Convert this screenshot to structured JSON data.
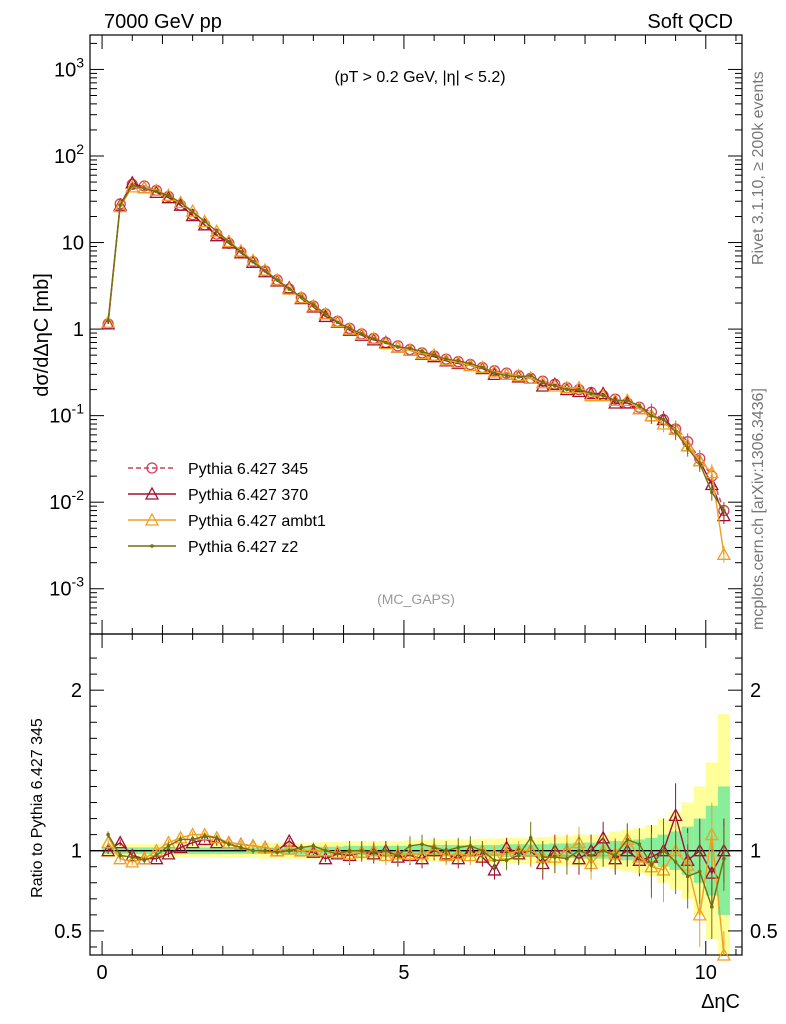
{
  "header": {
    "left": "7000 GeV pp",
    "right": "Soft QCD"
  },
  "side_labels": {
    "rivet": "Rivet 3.1.10, ≥ 200k events",
    "mcplots": "mcplots.cern.ch [arXiv:1306.3436]"
  },
  "watermark": "(MC_GAPS)",
  "chart_data": [
    {
      "type": "line",
      "panel": "main",
      "title": "(pT > 0.2 GeV, |η| < 5.2)",
      "ylabel": "dσ/dΔηC [mb]",
      "yscale": "log",
      "xlim": [
        -0.2,
        10.6
      ],
      "ylim": [
        0.0003,
        2500
      ],
      "y_ticks": [
        "10^3",
        "10^2",
        "10",
        "1",
        "10^-1",
        "10^-2",
        "10^-3"
      ],
      "legend_position": "lower-left",
      "x": [
        0.1,
        0.3,
        0.5,
        0.7,
        0.9,
        1.1,
        1.3,
        1.5,
        1.7,
        1.9,
        2.1,
        2.3,
        2.5,
        2.7,
        2.9,
        3.1,
        3.3,
        3.5,
        3.7,
        3.9,
        4.1,
        4.3,
        4.5,
        4.7,
        4.9,
        5.1,
        5.3,
        5.5,
        5.7,
        5.9,
        6.1,
        6.3,
        6.5,
        6.7,
        6.9,
        7.1,
        7.3,
        7.5,
        7.7,
        7.9,
        8.1,
        8.3,
        8.5,
        8.7,
        8.9,
        9.1,
        9.3,
        9.5,
        9.7,
        9.9,
        10.1,
        10.3
      ],
      "series": [
        {
          "name": "Pythia 6.427 345",
          "color": "#d04060",
          "dashed": true,
          "marker": "circle-open",
          "values": [
            1.15,
            28,
            47,
            45,
            40,
            34,
            27,
            21,
            16,
            12.5,
            9.8,
            7.7,
            6.0,
            4.7,
            3.7,
            2.9,
            2.3,
            1.85,
            1.5,
            1.23,
            1.02,
            0.88,
            0.78,
            0.7,
            0.64,
            0.58,
            0.53,
            0.49,
            0.45,
            0.42,
            0.39,
            0.36,
            0.33,
            0.31,
            0.29,
            0.27,
            0.25,
            0.23,
            0.21,
            0.2,
            0.185,
            0.17,
            0.155,
            0.14,
            0.125,
            0.11,
            0.09,
            0.07,
            0.05,
            0.032,
            0.02,
            0.008
          ]
        },
        {
          "name": "Pythia 6.427 370",
          "color": "#a01030",
          "dashed": false,
          "marker": "triangle-open",
          "values": [
            1.15,
            27,
            49,
            43,
            38,
            33,
            27,
            20.5,
            16,
            12,
            9.9,
            7.6,
            5.9,
            4.6,
            3.6,
            3.0,
            2.25,
            1.8,
            1.4,
            1.2,
            0.97,
            0.85,
            0.75,
            0.7,
            0.62,
            0.57,
            0.51,
            0.48,
            0.43,
            0.4,
            0.38,
            0.35,
            0.3,
            0.3,
            0.28,
            0.27,
            0.22,
            0.23,
            0.2,
            0.19,
            0.18,
            0.18,
            0.14,
            0.14,
            0.12,
            0.1,
            0.09,
            0.07,
            0.045,
            0.03,
            0.016,
            0.007
          ]
        },
        {
          "name": "Pythia 6.427 ambt1",
          "color": "#f0a020",
          "dashed": false,
          "marker": "triangle-open",
          "values": [
            1.2,
            26,
            44,
            43,
            40,
            35,
            29,
            23,
            17.5,
            13.5,
            10.3,
            8.0,
            6.2,
            4.8,
            3.7,
            2.9,
            2.3,
            1.85,
            1.5,
            1.22,
            1.0,
            0.87,
            0.78,
            0.68,
            0.62,
            0.57,
            0.52,
            0.5,
            0.44,
            0.41,
            0.38,
            0.36,
            0.32,
            0.3,
            0.29,
            0.27,
            0.24,
            0.22,
            0.21,
            0.21,
            0.17,
            0.17,
            0.15,
            0.15,
            0.12,
            0.1,
            0.08,
            0.07,
            0.045,
            0.03,
            0.022,
            0.0025
          ]
        },
        {
          "name": "Pythia 6.427 z2",
          "color": "#707010",
          "dashed": false,
          "marker": "dot",
          "values": [
            1.25,
            27,
            46,
            42,
            39,
            35,
            29,
            22.5,
            17.5,
            13.5,
            10.2,
            7.8,
            6.0,
            4.7,
            3.7,
            2.9,
            2.35,
            1.9,
            1.5,
            1.2,
            1.02,
            0.88,
            0.77,
            0.7,
            0.62,
            0.6,
            0.55,
            0.5,
            0.45,
            0.43,
            0.4,
            0.36,
            0.31,
            0.29,
            0.28,
            0.29,
            0.24,
            0.22,
            0.2,
            0.2,
            0.18,
            0.17,
            0.15,
            0.15,
            0.13,
            0.1,
            0.09,
            0.065,
            0.042,
            0.028,
            0.013,
            0.008
          ]
        }
      ]
    },
    {
      "type": "line",
      "panel": "ratio",
      "xlabel": "ΔηC",
      "ylabel": "Ratio to Pythia 6.427 345",
      "xlim": [
        -0.2,
        10.6
      ],
      "ylim": [
        0.35,
        2.35
      ],
      "x_ticks": [
        "0",
        "5",
        "10"
      ],
      "y_ticks": [
        "0.5",
        "1",
        "2"
      ],
      "reference_line": 1,
      "bands": {
        "green_halfwidth": [
          0.02,
          0.02,
          0.02,
          0.02,
          0.02,
          0.02,
          0.02,
          0.02,
          0.02,
          0.02,
          0.02,
          0.02,
          0.02,
          0.02,
          0.02,
          0.025,
          0.025,
          0.025,
          0.025,
          0.025,
          0.03,
          0.03,
          0.03,
          0.03,
          0.03,
          0.03,
          0.03,
          0.035,
          0.035,
          0.035,
          0.035,
          0.035,
          0.035,
          0.04,
          0.04,
          0.04,
          0.04,
          0.045,
          0.045,
          0.05,
          0.05,
          0.05,
          0.06,
          0.06,
          0.07,
          0.08,
          0.1,
          0.12,
          0.15,
          0.2,
          0.28,
          0.4
        ],
        "yellow_halfwidth": [
          0.04,
          0.04,
          0.04,
          0.04,
          0.04,
          0.04,
          0.04,
          0.04,
          0.04,
          0.045,
          0.045,
          0.045,
          0.045,
          0.05,
          0.05,
          0.05,
          0.05,
          0.05,
          0.055,
          0.055,
          0.06,
          0.06,
          0.06,
          0.06,
          0.06,
          0.065,
          0.065,
          0.07,
          0.07,
          0.07,
          0.07,
          0.075,
          0.075,
          0.08,
          0.08,
          0.08,
          0.085,
          0.09,
          0.09,
          0.1,
          0.1,
          0.1,
          0.12,
          0.13,
          0.14,
          0.16,
          0.2,
          0.24,
          0.3,
          0.4,
          0.55,
          0.85
        ]
      },
      "series": [
        {
          "name": "Pythia 6.427 370",
          "color": "#a01030",
          "marker": "triangle-open",
          "values": [
            1.0,
            1.05,
            0.97,
            0.95,
            0.95,
            0.98,
            1.02,
            1.05,
            1.07,
            1.05,
            1.05,
            1.04,
            1.03,
            1.02,
            1.0,
            1.06,
            1.0,
            0.99,
            0.95,
            0.98,
            0.97,
            0.99,
            0.98,
            1.0,
            0.96,
            0.97,
            0.95,
            1.0,
            0.98,
            0.95,
            1.0,
            0.96,
            0.88,
            1.02,
            0.98,
            1.0,
            0.92,
            1.0,
            1.0,
            0.95,
            1.0,
            1.08,
            0.95,
            1.0,
            0.94,
            0.96,
            1.0,
            1.22,
            0.94,
            1.0,
            0.86,
            1.0
          ]
        },
        {
          "name": "Pythia 6.427 ambt1",
          "color": "#f0a020",
          "marker": "triangle-open",
          "values": [
            1.05,
            0.95,
            0.93,
            0.95,
            1.0,
            1.05,
            1.08,
            1.1,
            1.1,
            1.08,
            1.05,
            1.04,
            1.03,
            1.02,
            1.0,
            1.01,
            1.0,
            1.0,
            1.0,
            0.99,
            0.98,
            0.99,
            1.0,
            0.97,
            0.98,
            0.98,
            0.98,
            1.01,
            0.97,
            0.98,
            0.97,
            1.0,
            0.97,
            0.98,
            1.0,
            1.0,
            0.96,
            0.96,
            1.0,
            1.05,
            0.92,
            1.0,
            0.98,
            1.07,
            0.96,
            0.9,
            0.88,
            1.0,
            0.91,
            0.6,
            1.1,
            0.3
          ]
        },
        {
          "name": "Pythia 6.427 z2",
          "color": "#707010",
          "marker": "dot",
          "values": [
            1.1,
            0.97,
            0.96,
            0.94,
            0.97,
            1.03,
            1.07,
            1.07,
            1.09,
            1.08,
            1.04,
            1.02,
            1.0,
            1.0,
            0.99,
            1.0,
            1.02,
            1.03,
            1.0,
            0.98,
            1.0,
            1.0,
            0.99,
            1.0,
            0.97,
            1.03,
            1.04,
            1.02,
            1.0,
            1.02,
            1.03,
            1.0,
            0.94,
            0.94,
            0.97,
            1.08,
            0.96,
            0.96,
            0.95,
            1.0,
            0.97,
            1.0,
            0.97,
            1.07,
            1.04,
            0.91,
            1.0,
            0.93,
            0.84,
            0.87,
            0.65,
            0.95
          ]
        }
      ]
    }
  ]
}
